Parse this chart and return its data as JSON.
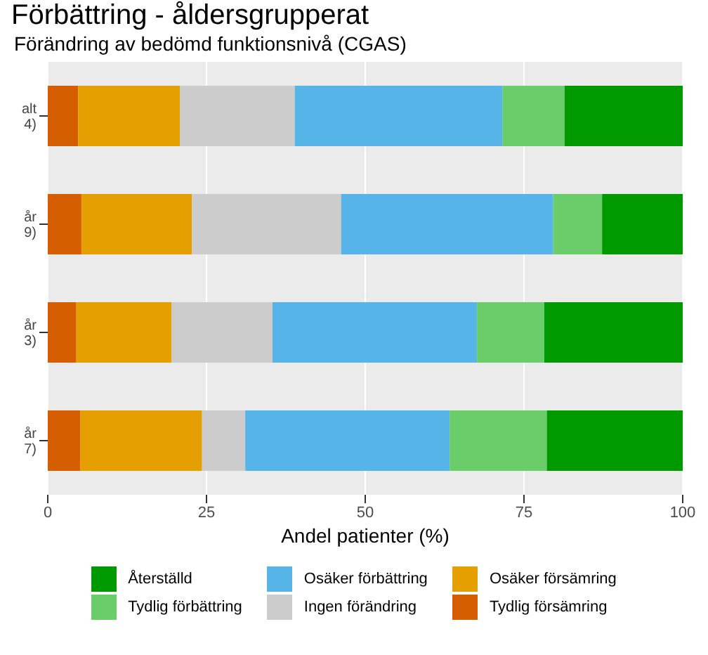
{
  "chart_data": {
    "type": "bar",
    "orientation": "horizontal",
    "stacked": true,
    "title": "Förbättring - åldersgrupperat",
    "subtitle": "Förändring av bedömd funktionsnivå (CGAS)",
    "xlabel": "Andel patienter (%)",
    "categories": [
      "alt\n4)",
      "år\n9)",
      "år\n3)",
      "år\n7)"
    ],
    "series": [
      {
        "name": "Tydlig försämring",
        "color": "#d55e00",
        "values": [
          4.8,
          5.3,
          4.5,
          5.1
        ]
      },
      {
        "name": "Osäker försämring",
        "color": "#e69f00",
        "values": [
          16.0,
          17.4,
          15.0,
          19.2
        ]
      },
      {
        "name": "Ingen förändring",
        "color": "#cccccc",
        "values": [
          18.1,
          23.5,
          15.9,
          6.8
        ]
      },
      {
        "name": "Osäker förbättring",
        "color": "#56b4e9",
        "values": [
          32.7,
          33.4,
          32.2,
          32.2
        ]
      },
      {
        "name": "Tydlig förbättring",
        "color": "#6acd6a",
        "values": [
          9.8,
          7.7,
          10.6,
          15.3
        ]
      },
      {
        "name": "Återställd",
        "color": "#009900",
        "values": [
          18.6,
          12.7,
          21.8,
          21.4
        ]
      }
    ],
    "xlim": [
      0,
      100
    ],
    "xticks": [
      0,
      25,
      50,
      75,
      100
    ],
    "grid": "x",
    "legend": "bottom"
  }
}
